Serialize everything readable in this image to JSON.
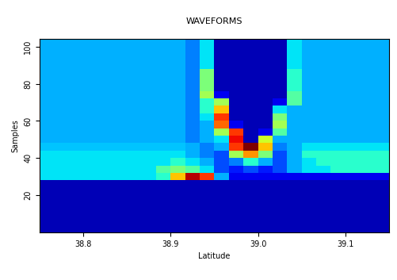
{
  "chart_data": {
    "type": "heatmap",
    "title": "WAVEFORMS",
    "x_label": "Latitude",
    "y_label": "Samples",
    "xlim": [
      38.75,
      39.15
    ],
    "ylim": [
      0,
      104
    ],
    "xticks": [
      38.8,
      38.9,
      39.0,
      39.1
    ],
    "yticks": [
      20,
      40,
      60,
      80,
      100
    ],
    "color": "jet",
    "color_range": [
      0,
      1
    ],
    "cells": [
      [
        0.05,
        0.05,
        0.05,
        0.05,
        0.05,
        0.05,
        0.05,
        0.05,
        0.05,
        0.05,
        0.05,
        0.05,
        0.05,
        0.05,
        0.05,
        0.05,
        0.05,
        0.05,
        0.05,
        0.05,
        0.05,
        0.05,
        0.05,
        0.05
      ],
      [
        0.05,
        0.05,
        0.05,
        0.05,
        0.05,
        0.05,
        0.05,
        0.05,
        0.05,
        0.05,
        0.05,
        0.05,
        0.05,
        0.05,
        0.05,
        0.05,
        0.05,
        0.05,
        0.05,
        0.05,
        0.05,
        0.05,
        0.05,
        0.05
      ],
      [
        0.05,
        0.05,
        0.05,
        0.05,
        0.05,
        0.05,
        0.05,
        0.05,
        0.05,
        0.05,
        0.05,
        0.05,
        0.05,
        0.05,
        0.05,
        0.05,
        0.05,
        0.05,
        0.05,
        0.05,
        0.05,
        0.05,
        0.05,
        0.05
      ],
      [
        0.05,
        0.05,
        0.05,
        0.05,
        0.05,
        0.05,
        0.05,
        0.05,
        0.05,
        0.05,
        0.05,
        0.05,
        0.05,
        0.05,
        0.05,
        0.05,
        0.05,
        0.05,
        0.05,
        0.05,
        0.05,
        0.05,
        0.05,
        0.05
      ],
      [
        0.05,
        0.05,
        0.05,
        0.05,
        0.05,
        0.05,
        0.05,
        0.05,
        0.05,
        0.05,
        0.05,
        0.05,
        0.05,
        0.05,
        0.05,
        0.05,
        0.05,
        0.05,
        0.05,
        0.05,
        0.05,
        0.05,
        0.05,
        0.05
      ],
      [
        0.05,
        0.05,
        0.05,
        0.05,
        0.05,
        0.05,
        0.05,
        0.05,
        0.05,
        0.05,
        0.05,
        0.05,
        0.05,
        0.05,
        0.05,
        0.05,
        0.05,
        0.05,
        0.05,
        0.05,
        0.05,
        0.05,
        0.05,
        0.05
      ],
      [
        0.05,
        0.05,
        0.05,
        0.05,
        0.05,
        0.05,
        0.05,
        0.05,
        0.05,
        0.05,
        0.05,
        0.05,
        0.05,
        0.05,
        0.05,
        0.05,
        0.05,
        0.05,
        0.05,
        0.05,
        0.05,
        0.05,
        0.05,
        0.05
      ],
      [
        0.35,
        0.35,
        0.35,
        0.35,
        0.35,
        0.35,
        0.35,
        0.35,
        0.4,
        0.7,
        0.95,
        0.85,
        0.3,
        0.1,
        0.1,
        0.1,
        0.1,
        0.1,
        0.1,
        0.1,
        0.1,
        0.1,
        0.1,
        0.1
      ],
      [
        0.35,
        0.35,
        0.35,
        0.35,
        0.35,
        0.35,
        0.35,
        0.35,
        0.45,
        0.5,
        0.45,
        0.35,
        0.2,
        0.15,
        0.2,
        0.15,
        0.2,
        0.3,
        0.35,
        0.35,
        0.4,
        0.4,
        0.4,
        0.4
      ],
      [
        0.35,
        0.35,
        0.35,
        0.35,
        0.35,
        0.35,
        0.35,
        0.35,
        0.35,
        0.4,
        0.35,
        0.3,
        0.2,
        0.25,
        0.4,
        0.3,
        0.2,
        0.3,
        0.35,
        0.4,
        0.4,
        0.4,
        0.4,
        0.4
      ],
      [
        0.35,
        0.35,
        0.35,
        0.35,
        0.35,
        0.35,
        0.35,
        0.35,
        0.35,
        0.35,
        0.3,
        0.25,
        0.2,
        0.55,
        0.75,
        0.5,
        0.2,
        0.3,
        0.4,
        0.4,
        0.4,
        0.4,
        0.4,
        0.4
      ],
      [
        0.32,
        0.32,
        0.32,
        0.32,
        0.32,
        0.32,
        0.32,
        0.32,
        0.32,
        0.32,
        0.3,
        0.25,
        0.3,
        0.85,
        1.0,
        0.7,
        0.25,
        0.3,
        0.35,
        0.35,
        0.35,
        0.35,
        0.35,
        0.35
      ],
      [
        0.3,
        0.3,
        0.3,
        0.3,
        0.3,
        0.3,
        0.3,
        0.3,
        0.3,
        0.3,
        0.25,
        0.3,
        0.35,
        0.9,
        0.05,
        0.6,
        0.3,
        0.3,
        0.3,
        0.3,
        0.3,
        0.3,
        0.3,
        0.3
      ],
      [
        0.3,
        0.3,
        0.3,
        0.3,
        0.3,
        0.3,
        0.3,
        0.3,
        0.3,
        0.3,
        0.25,
        0.3,
        0.55,
        0.85,
        0.05,
        0.1,
        0.45,
        0.3,
        0.3,
        0.3,
        0.3,
        0.3,
        0.3,
        0.3
      ],
      [
        0.3,
        0.3,
        0.3,
        0.3,
        0.3,
        0.3,
        0.3,
        0.3,
        0.3,
        0.3,
        0.25,
        0.3,
        0.8,
        0.1,
        0.05,
        0.05,
        0.55,
        0.3,
        0.3,
        0.3,
        0.3,
        0.3,
        0.3,
        0.3
      ],
      [
        0.3,
        0.3,
        0.3,
        0.3,
        0.3,
        0.3,
        0.3,
        0.3,
        0.3,
        0.3,
        0.25,
        0.35,
        0.85,
        0.05,
        0.05,
        0.05,
        0.5,
        0.3,
        0.3,
        0.3,
        0.3,
        0.3,
        0.3,
        0.3
      ],
      [
        0.3,
        0.3,
        0.3,
        0.3,
        0.3,
        0.3,
        0.3,
        0.3,
        0.3,
        0.3,
        0.25,
        0.4,
        0.7,
        0.05,
        0.05,
        0.05,
        0.35,
        0.3,
        0.3,
        0.3,
        0.3,
        0.3,
        0.3,
        0.3
      ],
      [
        0.3,
        0.3,
        0.3,
        0.3,
        0.3,
        0.3,
        0.3,
        0.3,
        0.3,
        0.3,
        0.25,
        0.4,
        0.55,
        0.05,
        0.05,
        0.05,
        0.1,
        0.45,
        0.3,
        0.3,
        0.3,
        0.3,
        0.3,
        0.3
      ],
      [
        0.3,
        0.3,
        0.3,
        0.3,
        0.3,
        0.3,
        0.3,
        0.3,
        0.3,
        0.3,
        0.25,
        0.55,
        0.1,
        0.05,
        0.05,
        0.05,
        0.05,
        0.45,
        0.3,
        0.3,
        0.3,
        0.3,
        0.3,
        0.3
      ],
      [
        0.3,
        0.3,
        0.3,
        0.3,
        0.3,
        0.3,
        0.3,
        0.3,
        0.3,
        0.3,
        0.25,
        0.5,
        0.05,
        0.05,
        0.05,
        0.05,
        0.05,
        0.4,
        0.3,
        0.3,
        0.3,
        0.3,
        0.3,
        0.3
      ],
      [
        0.3,
        0.3,
        0.3,
        0.3,
        0.3,
        0.3,
        0.3,
        0.3,
        0.3,
        0.3,
        0.25,
        0.5,
        0.05,
        0.05,
        0.05,
        0.05,
        0.05,
        0.4,
        0.3,
        0.3,
        0.3,
        0.3,
        0.3,
        0.3
      ],
      [
        0.3,
        0.3,
        0.3,
        0.3,
        0.3,
        0.3,
        0.3,
        0.3,
        0.3,
        0.3,
        0.25,
        0.5,
        0.05,
        0.05,
        0.05,
        0.05,
        0.05,
        0.4,
        0.3,
        0.3,
        0.3,
        0.3,
        0.3,
        0.3
      ],
      [
        0.3,
        0.3,
        0.3,
        0.3,
        0.3,
        0.3,
        0.3,
        0.3,
        0.3,
        0.3,
        0.25,
        0.35,
        0.05,
        0.05,
        0.05,
        0.05,
        0.05,
        0.35,
        0.3,
        0.3,
        0.3,
        0.3,
        0.3,
        0.3
      ],
      [
        0.3,
        0.3,
        0.3,
        0.3,
        0.3,
        0.3,
        0.3,
        0.3,
        0.3,
        0.3,
        0.25,
        0.35,
        0.05,
        0.05,
        0.05,
        0.05,
        0.05,
        0.35,
        0.3,
        0.3,
        0.3,
        0.3,
        0.3,
        0.3
      ],
      [
        0.3,
        0.3,
        0.3,
        0.3,
        0.3,
        0.3,
        0.3,
        0.3,
        0.3,
        0.3,
        0.25,
        0.35,
        0.05,
        0.05,
        0.05,
        0.05,
        0.05,
        0.35,
        0.3,
        0.3,
        0.3,
        0.3,
        0.3,
        0.3
      ],
      [
        0.3,
        0.3,
        0.3,
        0.3,
        0.3,
        0.3,
        0.3,
        0.3,
        0.3,
        0.3,
        0.25,
        0.35,
        0.05,
        0.05,
        0.05,
        0.05,
        0.05,
        0.35,
        0.3,
        0.3,
        0.3,
        0.3,
        0.3,
        0.3
      ]
    ]
  }
}
